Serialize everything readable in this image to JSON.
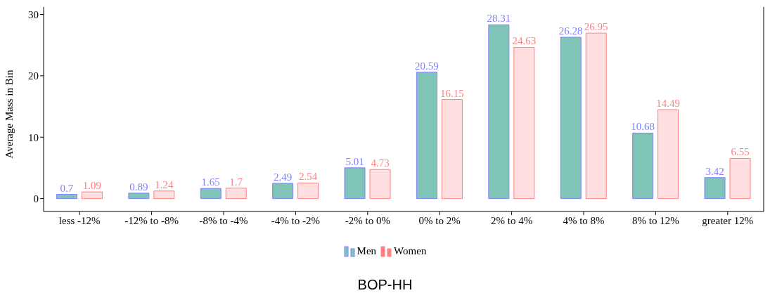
{
  "chart_data": {
    "type": "bar",
    "title": "BOP-HH",
    "ylabel": "Average Mass in Bin",
    "categories": [
      "less -12%",
      "-12% to -8%",
      "-8% to -4%",
      "-4% to -2%",
      "-2% to 0%",
      "0% to 2%",
      "2% to 4%",
      "4% to 8%",
      "8% to 12%",
      "greater 12%"
    ],
    "series": [
      {
        "name": "Men",
        "color": "#80c4b7",
        "values": [
          0.7,
          0.89,
          1.65,
          2.49,
          5.01,
          20.59,
          28.31,
          26.28,
          10.68,
          3.42
        ]
      },
      {
        "name": "Women",
        "color": "#ff8080",
        "values": [
          1.09,
          1.24,
          1.7,
          2.54,
          4.73,
          16.15,
          24.63,
          26.95,
          14.49,
          6.55
        ]
      }
    ],
    "ylim": [
      -2.1,
      31.2
    ],
    "yticks": [
      0,
      10,
      20,
      30
    ],
    "grid": false,
    "legend": "bottom",
    "data_labels": true
  }
}
